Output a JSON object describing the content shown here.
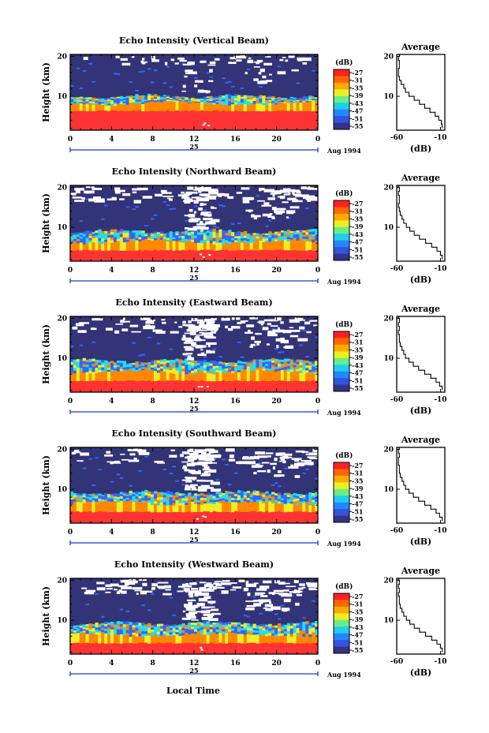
{
  "shared": {
    "height_label": "Height (km)",
    "date_label": "Aug 1994",
    "day_label": "25",
    "x_label": "Local Time",
    "colorbar_unit": "(dB)",
    "avg_title": "Average",
    "avg_xlabel": "(dB)"
  },
  "colors": {
    "red": "#ff3333",
    "orange": "#ff8800",
    "yellow": "#eeee22",
    "cyan": "#22ddee",
    "blue": "#3366ff",
    "navy": "#333377",
    "gap": "#ffffff"
  },
  "chart_data": [
    {
      "type": "heatmap",
      "title": "Echo Intensity (Vertical Beam)",
      "x_ticks": [
        "0",
        "4",
        "8",
        "12",
        "16",
        "20",
        "0"
      ],
      "y_ticks": [
        "10",
        "20"
      ],
      "xlim": [
        0,
        24
      ],
      "ylim": [
        1.5,
        20.5
      ],
      "colorbar": {
        "unit": "(dB)",
        "ticks": [
          "-27",
          "-31",
          "-35",
          "-39",
          "-43",
          "-47",
          "-51",
          "-55"
        ]
      },
      "layers": {
        "red_top": 6.3,
        "orange_top": 8.2,
        "mixed_top": 10.0,
        "gaps": "sparse"
      },
      "profile": {
        "type": "line",
        "title": "Average",
        "xlabel": "(dB)",
        "x_ticks": [
          "-60",
          "-10"
        ],
        "y_ticks": [
          "10",
          "20"
        ],
        "xlim": [
          -60,
          -5
        ],
        "ylim": [
          1.5,
          20.5
        ],
        "x": [
          -8,
          -9,
          -12,
          -16,
          -22,
          -28,
          -34,
          -40,
          -46,
          -50,
          -52,
          -55,
          -57,
          -58,
          -58,
          -57,
          -57,
          -58,
          -57,
          -56
        ],
        "y": [
          2,
          3,
          4,
          5,
          6,
          7,
          8,
          9,
          10,
          11,
          12,
          13,
          14,
          15,
          16,
          17,
          18,
          19,
          20,
          20.3
        ]
      }
    },
    {
      "type": "heatmap",
      "title": "Echo Intensity (Northward Beam)",
      "x_ticks": [
        "0",
        "4",
        "8",
        "12",
        "16",
        "20",
        "0"
      ],
      "y_ticks": [
        "10",
        "20"
      ],
      "xlim": [
        0,
        24
      ],
      "ylim": [
        1.5,
        20.5
      ],
      "colorbar": {
        "unit": "(dB)",
        "ticks": [
          "-27",
          "-31",
          "-35",
          "-39",
          "-43",
          "-47",
          "-51",
          "-55"
        ]
      },
      "layers": {
        "red_top": 4.2,
        "orange_top": 6.3,
        "mixed_top": 9.0,
        "gaps": "dense"
      },
      "profile": {
        "type": "line",
        "title": "Average",
        "xlabel": "(dB)",
        "x_ticks": [
          "-60",
          "-10"
        ],
        "y_ticks": [
          "10",
          "20"
        ],
        "xlim": [
          -60,
          -5
        ],
        "ylim": [
          1.5,
          20.5
        ],
        "x": [
          -8,
          -10,
          -14,
          -20,
          -27,
          -34,
          -40,
          -45,
          -49,
          -52,
          -54,
          -56,
          -57,
          -58,
          -57,
          -57,
          -58,
          -57,
          -58,
          -57
        ],
        "y": [
          2,
          3,
          4,
          5,
          6,
          7,
          8,
          9,
          10,
          11,
          12,
          13,
          14,
          15,
          16,
          17,
          18,
          19,
          20,
          20.3
        ]
      }
    },
    {
      "type": "heatmap",
      "title": "Echo Intensity (Eastward Beam)",
      "x_ticks": [
        "0",
        "4",
        "8",
        "12",
        "16",
        "20",
        "0"
      ],
      "y_ticks": [
        "10",
        "20"
      ],
      "xlim": [
        0,
        24
      ],
      "ylim": [
        1.5,
        20.5
      ],
      "colorbar": {
        "unit": "(dB)",
        "ticks": [
          "-27",
          "-31",
          "-35",
          "-39",
          "-43",
          "-47",
          "-51",
          "-55"
        ]
      },
      "layers": {
        "red_top": 4.3,
        "orange_top": 6.5,
        "mixed_top": 9.4,
        "gaps": "dense"
      },
      "profile": {
        "type": "line",
        "title": "Average",
        "xlabel": "(dB)",
        "x_ticks": [
          "-60",
          "-10"
        ],
        "y_ticks": [
          "10",
          "20"
        ],
        "xlim": [
          -60,
          -5
        ],
        "ylim": [
          1.5,
          20.5
        ],
        "x": [
          -8,
          -11,
          -15,
          -21,
          -28,
          -35,
          -41,
          -46,
          -50,
          -52,
          -54,
          -56,
          -57,
          -57,
          -58,
          -57,
          -58,
          -57,
          -58,
          -57
        ],
        "y": [
          2,
          3,
          4,
          5,
          6,
          7,
          8,
          9,
          10,
          11,
          12,
          13,
          14,
          15,
          16,
          17,
          18,
          19,
          20,
          20.3
        ]
      }
    },
    {
      "type": "heatmap",
      "title": "Echo Intensity (Southward Beam)",
      "x_ticks": [
        "0",
        "4",
        "8",
        "12",
        "16",
        "20",
        "0"
      ],
      "y_ticks": [
        "10",
        "20"
      ],
      "xlim": [
        0,
        24
      ],
      "ylim": [
        1.5,
        20.5
      ],
      "colorbar": {
        "unit": "(dB)",
        "ticks": [
          "-27",
          "-31",
          "-35",
          "-39",
          "-43",
          "-47",
          "-51",
          "-55"
        ]
      },
      "layers": {
        "red_top": 4.3,
        "orange_top": 6.5,
        "mixed_top": 9.2,
        "gaps": "dense"
      },
      "profile": {
        "type": "line",
        "title": "Average",
        "xlabel": "(dB)",
        "x_ticks": [
          "-60",
          "-10"
        ],
        "y_ticks": [
          "10",
          "20"
        ],
        "xlim": [
          -60,
          -5
        ],
        "ylim": [
          1.5,
          20.5
        ],
        "x": [
          -8,
          -11,
          -15,
          -21,
          -28,
          -35,
          -41,
          -46,
          -50,
          -52,
          -54,
          -56,
          -57,
          -57,
          -58,
          -58,
          -57,
          -58,
          -57,
          -58
        ],
        "y": [
          2,
          3,
          4,
          5,
          6,
          7,
          8,
          9,
          10,
          11,
          12,
          13,
          14,
          15,
          16,
          17,
          18,
          19,
          20,
          20.3
        ]
      }
    },
    {
      "type": "heatmap",
      "title": "Echo Intensity (Westward Beam)",
      "x_ticks": [
        "0",
        "4",
        "8",
        "12",
        "16",
        "20",
        "0"
      ],
      "y_ticks": [
        "10",
        "20"
      ],
      "xlim": [
        0,
        24
      ],
      "ylim": [
        1.5,
        20.5
      ],
      "colorbar": {
        "unit": "(dB)",
        "ticks": [
          "-27",
          "-31",
          "-35",
          "-39",
          "-43",
          "-47",
          "-51",
          "-55"
        ]
      },
      "layers": {
        "red_top": 4.2,
        "orange_top": 6.3,
        "mixed_top": 9.2,
        "gaps": "dense"
      },
      "profile": {
        "type": "line",
        "title": "Average",
        "xlabel": "(dB)",
        "x_ticks": [
          "-60",
          "-10"
        ],
        "y_ticks": [
          "10",
          "20"
        ],
        "xlim": [
          -60,
          -5
        ],
        "ylim": [
          1.5,
          20.5
        ],
        "x": [
          -8,
          -10,
          -14,
          -20,
          -27,
          -34,
          -40,
          -45,
          -49,
          -52,
          -54,
          -56,
          -57,
          -57,
          -58,
          -57,
          -58,
          -57,
          -58,
          -57
        ],
        "y": [
          2,
          3,
          4,
          5,
          6,
          7,
          8,
          9,
          10,
          11,
          12,
          13,
          14,
          15,
          16,
          17,
          18,
          19,
          20,
          20.3
        ]
      }
    }
  ]
}
